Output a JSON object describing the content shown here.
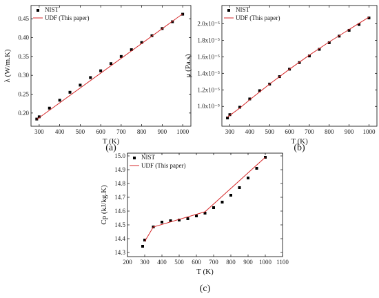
{
  "chart_data": [
    {
      "type": "scatter",
      "panel": "(a)",
      "xlabel": "T (K)",
      "ylabel": "λ (W/m.K)",
      "xlim": [
        260,
        1040
      ],
      "ylim": [
        0.165,
        0.485
      ],
      "xticks": [
        {
          "v": 300,
          "t": "300"
        },
        {
          "v": 400,
          "t": "400"
        },
        {
          "v": 500,
          "t": "500"
        },
        {
          "v": 600,
          "t": "600"
        },
        {
          "v": 700,
          "t": "700"
        },
        {
          "v": 800,
          "t": "800"
        },
        {
          "v": 900,
          "t": "900"
        },
        {
          "v": 1000,
          "t": "1000"
        }
      ],
      "yticks": [
        {
          "v": 0.2,
          "t": "0.20"
        },
        {
          "v": 0.25,
          "t": "0.25"
        },
        {
          "v": 0.3,
          "t": "0.30"
        },
        {
          "v": 0.35,
          "t": "0.35"
        },
        {
          "v": 0.4,
          "t": "0.40"
        },
        {
          "v": 0.45,
          "t": "0.45"
        }
      ],
      "legend": {
        "position": "top-left",
        "entries": [
          "NIST",
          "UDF (This paper)"
        ]
      },
      "series": [
        {
          "name": "NIST",
          "kind": "marker",
          "color": "#000000",
          "x": [
            288,
            300,
            350,
            400,
            450,
            500,
            550,
            600,
            650,
            700,
            750,
            800,
            850,
            900,
            950,
            1000
          ],
          "y": [
            0.184,
            0.19,
            0.213,
            0.234,
            0.255,
            0.274,
            0.294,
            0.312,
            0.331,
            0.35,
            0.368,
            0.387,
            0.405,
            0.424,
            0.442,
            0.462
          ]
        },
        {
          "name": "UDF (This paper)",
          "kind": "line",
          "color": "#d62728",
          "x": [
            288,
            1000
          ],
          "y": [
            0.183,
            0.463
          ]
        }
      ]
    },
    {
      "type": "scatter",
      "panel": "(b)",
      "xlabel": "T (K)",
      "ylabel": "μ (Pa.s)",
      "xlim": [
        260,
        1040
      ],
      "ylim": [
        0.76,
        2.22
      ],
      "xticks": [
        {
          "v": 300,
          "t": "300"
        },
        {
          "v": 400,
          "t": "400"
        },
        {
          "v": 500,
          "t": "500"
        },
        {
          "v": 600,
          "t": "600"
        },
        {
          "v": 700,
          "t": "700"
        },
        {
          "v": 800,
          "t": "800"
        },
        {
          "v": 900,
          "t": "900"
        },
        {
          "v": 1000,
          "t": "1000"
        }
      ],
      "yticks": [
        {
          "v": 1.0,
          "t": "1.0x10⁻⁵"
        },
        {
          "v": 1.2,
          "t": "1.2x10⁻⁵"
        },
        {
          "v": 1.4,
          "t": "1.4x10⁻⁵"
        },
        {
          "v": 1.6,
          "t": "1.6x10⁻⁵"
        },
        {
          "v": 1.8,
          "t": "1.8x10⁻⁵"
        },
        {
          "v": 2.0,
          "t": "2.0x10⁻⁵"
        }
      ],
      "legend": {
        "position": "top-left",
        "entries": [
          "NIST",
          "UDF (This paper)"
        ]
      },
      "series": [
        {
          "name": "NIST",
          "kind": "marker",
          "color": "#000000",
          "x": [
            288,
            300,
            350,
            400,
            450,
            500,
            550,
            600,
            650,
            700,
            750,
            800,
            850,
            900,
            950,
            1000
          ],
          "y": [
            0.86,
            0.9,
            0.99,
            1.09,
            1.19,
            1.27,
            1.36,
            1.45,
            1.53,
            1.61,
            1.69,
            1.77,
            1.85,
            1.92,
            1.99,
            2.07
          ]
        },
        {
          "name": "UDF (This paper)",
          "kind": "line",
          "color": "#d62728",
          "x": [
            288,
            350,
            400,
            500,
            600,
            700,
            800,
            900,
            1000
          ],
          "y": [
            0.87,
            0.98,
            1.08,
            1.27,
            1.45,
            1.62,
            1.78,
            1.93,
            2.08
          ]
        }
      ]
    },
    {
      "type": "scatter",
      "panel": "(c)",
      "xlabel": "T (K)",
      "ylabel": "Cp (kJ/kg.K)",
      "xlim": [
        200,
        1100
      ],
      "ylim": [
        14.27,
        15.02
      ],
      "xticks": [
        {
          "v": 200,
          "t": "200"
        },
        {
          "v": 300,
          "t": "300"
        },
        {
          "v": 400,
          "t": "400"
        },
        {
          "v": 500,
          "t": "500"
        },
        {
          "v": 600,
          "t": "600"
        },
        {
          "v": 700,
          "t": "700"
        },
        {
          "v": 800,
          "t": "800"
        },
        {
          "v": 900,
          "t": "900"
        },
        {
          "v": 1000,
          "t": "1000"
        },
        {
          "v": 1100,
          "t": "1100"
        }
      ],
      "yticks": [
        {
          "v": 14.3,
          "t": "14.3"
        },
        {
          "v": 14.4,
          "t": "14.4"
        },
        {
          "v": 14.5,
          "t": "14.5"
        },
        {
          "v": 14.6,
          "t": "14.6"
        },
        {
          "v": 14.7,
          "t": "14.7"
        },
        {
          "v": 14.8,
          "t": "14.8"
        },
        {
          "v": 14.9,
          "t": "14.9"
        },
        {
          "v": 15.0,
          "t": "15.0"
        }
      ],
      "legend": {
        "position": "top-left",
        "entries": [
          "NIST",
          "UDF (This paper)"
        ]
      },
      "series": [
        {
          "name": "NIST",
          "kind": "marker",
          "color": "#000000",
          "x": [
            288,
            300,
            350,
            400,
            450,
            500,
            550,
            600,
            650,
            700,
            750,
            800,
            850,
            900,
            950,
            1000
          ],
          "y": [
            14.345,
            14.39,
            14.485,
            14.52,
            14.53,
            14.535,
            14.545,
            14.565,
            14.585,
            14.625,
            14.665,
            14.715,
            14.77,
            14.84,
            14.91,
            14.99
          ]
        },
        {
          "name": "UDF (This paper)",
          "kind": "line",
          "color": "#d62728",
          "x": [
            300,
            350,
            650,
            1000
          ],
          "y": [
            14.38,
            14.485,
            14.595,
            14.99
          ]
        }
      ]
    }
  ]
}
